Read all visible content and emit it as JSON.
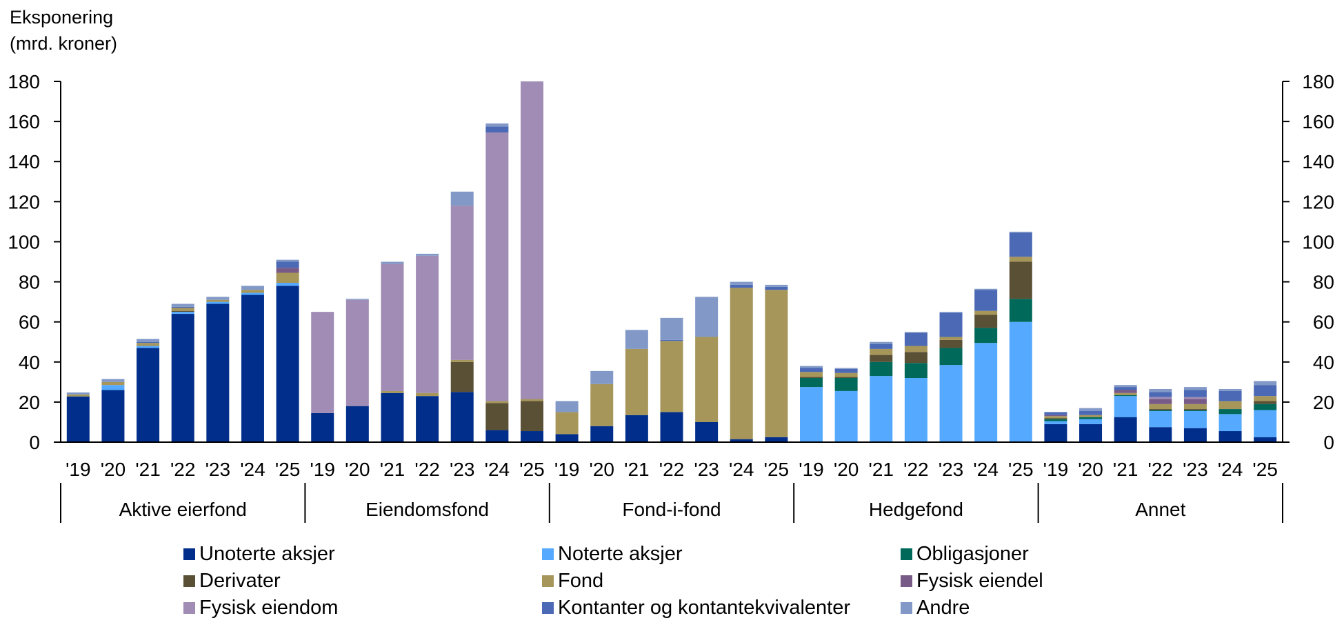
{
  "y_axis_title": [
    "Eksponering",
    "(mrd. kroner)"
  ],
  "chart_data": {
    "type": "bar",
    "stacked": true,
    "ylabel": "Eksponering (mrd. kroner)",
    "ylim": [
      0,
      180
    ],
    "y_ticks": [
      0,
      20,
      40,
      60,
      80,
      100,
      120,
      140,
      160,
      180
    ],
    "secondary_y_axis": true,
    "grid": false,
    "legend_position": "bottom",
    "series_names": [
      "Unoterte aksjer",
      "Noterte aksjer",
      "Obligasjoner",
      "Derivater",
      "Fond",
      "Fysisk eiendel",
      "Fysisk eiendom",
      "Kontanter og kontantekvivalenter",
      "Andre"
    ],
    "colors": [
      "#002e8a",
      "#55aaff",
      "#00695a",
      "#5a5035",
      "#a6965a",
      "#785a87",
      "#a08cb4",
      "#4b69b4",
      "#8299c8"
    ],
    "years": [
      "'19",
      "'20",
      "'21",
      "'22",
      "'23",
      "'24",
      "'25"
    ],
    "groups": [
      {
        "name": "Aktive eierfond",
        "stacks": [
          [
            22.8,
            0,
            0,
            0,
            1.0,
            0,
            0,
            0,
            1.0
          ],
          [
            26.0,
            2.5,
            0,
            0,
            1.5,
            0,
            0,
            0,
            1.5
          ],
          [
            47.0,
            1.0,
            0,
            0,
            1.5,
            0,
            0,
            0.5,
            1.5
          ],
          [
            64.0,
            1.0,
            0,
            0.5,
            1.5,
            0,
            0,
            0.5,
            1.5
          ],
          [
            69.0,
            1.0,
            0,
            0,
            1.0,
            0,
            0,
            0,
            1.5
          ],
          [
            73.5,
            1.0,
            0,
            0,
            1.5,
            0,
            0,
            0,
            2.0
          ],
          [
            78.0,
            1.5,
            0,
            0,
            5.0,
            2.5,
            0,
            3.0,
            1.0
          ]
        ]
      },
      {
        "name": "Eiendomsfond",
        "stacks": [
          [
            14.5,
            0,
            0,
            0,
            0,
            0,
            50.5,
            0,
            0
          ],
          [
            18.0,
            0,
            0,
            0,
            0,
            0,
            53.0,
            0,
            0.5
          ],
          [
            24.5,
            0,
            0,
            0,
            1.0,
            0,
            63.5,
            0,
            1.0
          ],
          [
            23.0,
            0,
            0,
            0,
            1.5,
            0,
            68.5,
            0,
            1.0
          ],
          [
            25.0,
            0,
            0,
            15.0,
            1.0,
            0,
            77.0,
            0,
            7.0
          ],
          [
            6.0,
            0,
            0,
            13.5,
            1.0,
            0,
            134.0,
            3.0,
            1.5
          ],
          [
            5.5,
            0,
            0,
            15.0,
            1.0,
            0,
            158.5,
            0,
            0
          ]
        ]
      },
      {
        "name": "Fond-i-fond",
        "stacks": [
          [
            4.0,
            0,
            0,
            0,
            11.0,
            0,
            0,
            0,
            5.5
          ],
          [
            8.0,
            0,
            0,
            0,
            21.0,
            0,
            0,
            0,
            6.5
          ],
          [
            13.5,
            0,
            0,
            0,
            33.0,
            0,
            0,
            0,
            9.5
          ],
          [
            15.0,
            0,
            0,
            0,
            35.5,
            0,
            0,
            0.5,
            11.0
          ],
          [
            10.0,
            0,
            0,
            0,
            42.5,
            0,
            0,
            0,
            20.0
          ],
          [
            1.5,
            0,
            0,
            0,
            75.5,
            0,
            0,
            1.5,
            1.5
          ],
          [
            2.5,
            0,
            0,
            0,
            73.5,
            0,
            0,
            1.5,
            1.0
          ]
        ]
      },
      {
        "name": "Hedgefond",
        "stacks": [
          [
            0,
            27.5,
            4.5,
            0.5,
            2.5,
            0,
            0,
            2.0,
            1.0
          ],
          [
            0,
            25.5,
            6.5,
            0.5,
            2.0,
            0,
            0,
            2.0,
            0.5
          ],
          [
            0,
            33.0,
            7.0,
            3.5,
            3.0,
            0,
            0,
            2.5,
            1.0
          ],
          [
            0,
            32.0,
            7.5,
            5.5,
            3.0,
            0,
            0,
            6.5,
            0.5
          ],
          [
            0,
            38.5,
            8.5,
            4.0,
            1.5,
            0,
            0,
            12.0,
            0.5
          ],
          [
            0,
            49.5,
            7.5,
            6.5,
            2.0,
            0,
            0,
            10.5,
            0.5
          ],
          [
            0,
            60.0,
            11.5,
            18.5,
            2.5,
            0,
            0,
            12.0,
            0.5
          ]
        ]
      },
      {
        "name": "Annet",
        "stacks": [
          [
            9.0,
            1.5,
            1.0,
            0.5,
            1.0,
            0.5,
            0,
            1.5,
            0
          ],
          [
            9.0,
            2.5,
            1.0,
            0,
            1.0,
            0,
            0,
            2.0,
            1.5
          ],
          [
            12.5,
            10.5,
            0.5,
            0,
            1.0,
            1.5,
            0,
            1.5,
            1.0
          ],
          [
            7.5,
            8.0,
            0.5,
            0.5,
            2.5,
            2.5,
            1.0,
            2.5,
            1.5
          ],
          [
            7.0,
            8.5,
            0.5,
            0.5,
            2.5,
            2.5,
            1.0,
            3.5,
            1.5
          ],
          [
            5.5,
            8.5,
            2.5,
            0,
            4.0,
            0,
            0,
            5.0,
            1.0
          ],
          [
            2.5,
            13.5,
            3.0,
            1.5,
            2.5,
            0,
            0,
            5.5,
            2.0
          ]
        ]
      }
    ]
  }
}
